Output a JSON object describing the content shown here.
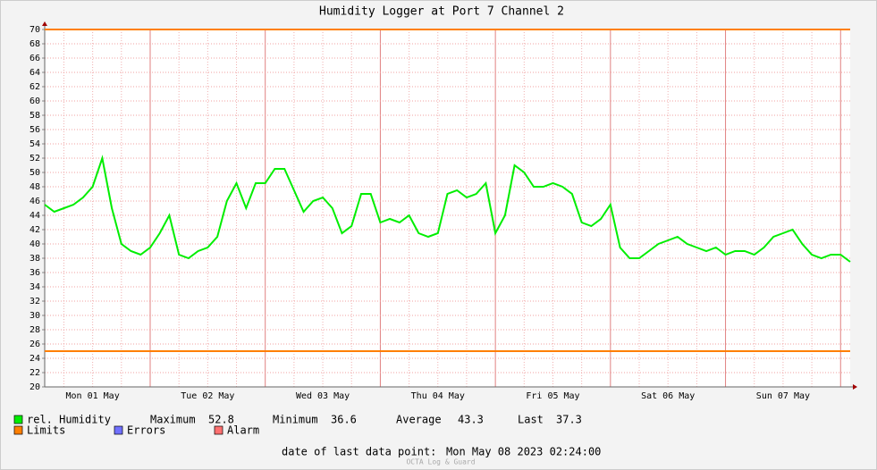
{
  "chart_data": {
    "type": "line",
    "title": "Humidity Logger at Port 7 Channel 2",
    "categories": [
      null,
      null,
      null,
      null,
      null,
      "Mon 01 May",
      null,
      null,
      null,
      null,
      null,
      null,
      null,
      null,
      null,
      null,
      null,
      "Tue 02 May",
      null,
      null,
      null,
      null,
      null,
      null,
      null,
      null,
      null,
      null,
      null,
      "Wed 03 May",
      null,
      null,
      null,
      null,
      null,
      null,
      null,
      null,
      null,
      null,
      null,
      "Thu 04 May",
      null,
      null,
      null,
      null,
      null,
      null,
      null,
      null,
      null,
      null,
      null,
      "Fri 05 May",
      null,
      null,
      null,
      null,
      null,
      null,
      null,
      null,
      null,
      null,
      null,
      "Sat 06 May",
      null,
      null,
      null,
      null,
      null,
      null,
      null,
      null,
      null,
      null,
      null,
      "Sun 07 May",
      null,
      null,
      null,
      null,
      null,
      null,
      null
    ],
    "series": [
      {
        "name": "rel. Humidity",
        "color": "#00ee00",
        "values": [
          45.5,
          44.5,
          45,
          45.5,
          46.5,
          48,
          52,
          45,
          40,
          39,
          38.5,
          39.5,
          41.5,
          44,
          38.5,
          38,
          39,
          39.5,
          41,
          46,
          48.5,
          45,
          48.5,
          48.5,
          50.5,
          50.5,
          47.5,
          44.5,
          46,
          46.5,
          45,
          41.5,
          42.5,
          47,
          47,
          43,
          43.5,
          43,
          44,
          41.5,
          41,
          41.5,
          47,
          47.5,
          46.5,
          47,
          48.5,
          41.5,
          44,
          51,
          50,
          48,
          48,
          48.5,
          48,
          47,
          43,
          42.5,
          43.5,
          45.5,
          39.5,
          38,
          38,
          39,
          40,
          40.5,
          41,
          40,
          39.5,
          39,
          39.5,
          38.5,
          39,
          39,
          38.5,
          39.5,
          41,
          41.5,
          42,
          40,
          38.5,
          38,
          38.5,
          38.5,
          37.5
        ]
      }
    ],
    "limits": {
      "name": "Limits",
      "color": "#ff7f00",
      "values": [
        70,
        25
      ]
    },
    "other_legend": [
      {
        "name": "Errors",
        "color": "#7070ff"
      },
      {
        "name": "Alarm",
        "color": "#ff7070"
      }
    ],
    "stats": [
      {
        "label": "Maximum",
        "value": 52.8
      },
      {
        "label": "Minimum",
        "value": 36.6
      },
      {
        "label": "Average",
        "value": 43.3
      },
      {
        "label": "Last",
        "value": 37.3
      }
    ],
    "ylim": [
      20,
      70
    ],
    "yticks": [
      20,
      22,
      24,
      26,
      28,
      30,
      32,
      34,
      36,
      38,
      40,
      42,
      44,
      46,
      48,
      50,
      52,
      54,
      56,
      58,
      60,
      62,
      64,
      66,
      68,
      70
    ],
    "grid": true,
    "footer_label": "date of last data point:",
    "footer_date": "Mon May 08 2023 02:24:00",
    "watermark": "OCTA Log & Guard"
  }
}
